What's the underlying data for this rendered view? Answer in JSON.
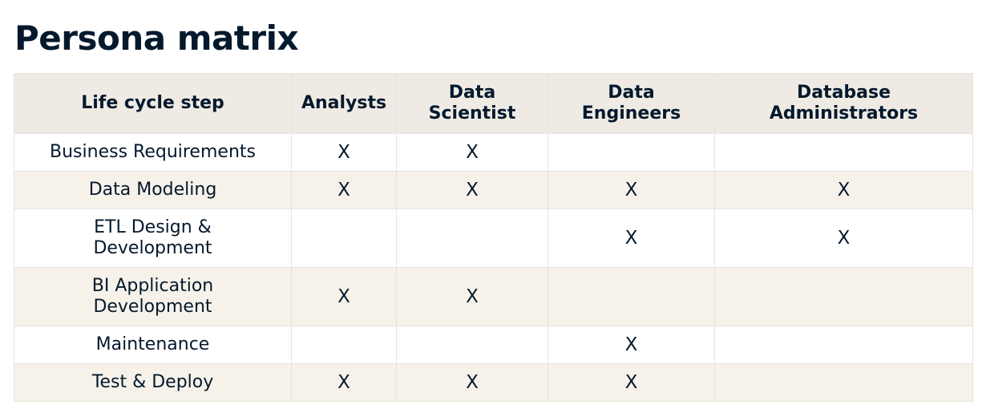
{
  "title": "Persona matrix",
  "table": {
    "headers": [
      {
        "lines": [
          "Life cycle step"
        ]
      },
      {
        "lines": [
          "Analysts"
        ]
      },
      {
        "lines": [
          "Data",
          "Scientist"
        ]
      },
      {
        "lines": [
          "Data",
          "Engineers"
        ]
      },
      {
        "lines": [
          "Database",
          "Administrators"
        ]
      }
    ],
    "rows": [
      {
        "step_lines": [
          "Business Requirements"
        ],
        "cells": [
          "X",
          "X",
          "",
          ""
        ]
      },
      {
        "step_lines": [
          "Data Modeling"
        ],
        "cells": [
          "X",
          "X",
          "X",
          "X"
        ]
      },
      {
        "step_lines": [
          "ETL Design &",
          "Development"
        ],
        "cells": [
          "",
          "",
          "X",
          "X"
        ]
      },
      {
        "step_lines": [
          "BI Application",
          "Development"
        ],
        "cells": [
          "X",
          "X",
          "",
          ""
        ]
      },
      {
        "step_lines": [
          "Maintenance"
        ],
        "cells": [
          "",
          "",
          "X",
          ""
        ]
      },
      {
        "step_lines": [
          "Test & Deploy"
        ],
        "cells": [
          "X",
          "X",
          "X",
          ""
        ]
      }
    ]
  },
  "colors": {
    "header_bg": "#efebe4",
    "stripe_bg": "#f6f2ea",
    "text": "#05192d",
    "border": "#e8e4dc"
  }
}
